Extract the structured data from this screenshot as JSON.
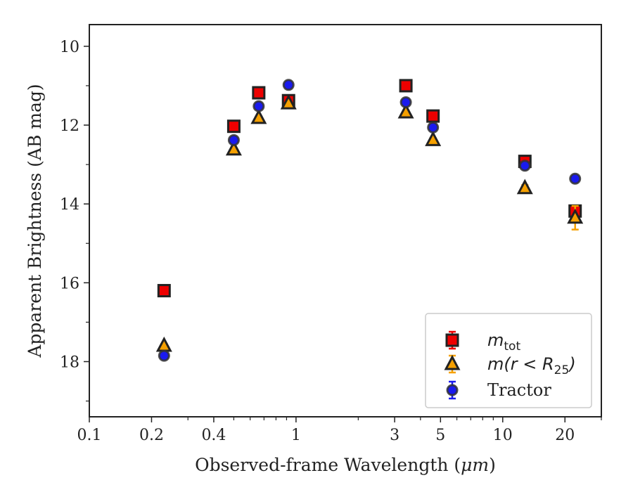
{
  "chart_data": {
    "type": "scatter",
    "xlabel_prefix": "Observed-frame Wavelength (",
    "xlabel_unit": "μm",
    "xlabel_suffix": ")",
    "ylabel": "Apparent Brightness (AB mag)",
    "xscale": "log",
    "xlim": [
      0.1,
      30
    ],
    "ylim": [
      19.4,
      9.45
    ],
    "y_inverted": true,
    "x_major_ticks": [
      0.1,
      0.2,
      0.4,
      1,
      3,
      5,
      10,
      20
    ],
    "x_tick_labels": [
      "0.1",
      "0.2",
      "0.4",
      "1",
      "3",
      "5",
      "10",
      "20"
    ],
    "x_minor_ticks": [
      0.3,
      0.5,
      0.6,
      0.7,
      0.8,
      0.9,
      2,
      4,
      6,
      7,
      8,
      9,
      30
    ],
    "y_major_ticks": [
      10,
      12,
      14,
      16,
      18
    ],
    "y_tick_labels": [
      "10",
      "12",
      "14",
      "16",
      "18"
    ],
    "y_minor_ticks": [
      11,
      13,
      15,
      17,
      19
    ],
    "grid": false,
    "legend_position": "lower-right",
    "series": [
      {
        "legend_main": "m",
        "legend_sub": "tot",
        "legend_rest": "",
        "marker": "square",
        "fill_color": "#ee0000",
        "edge_color": "#222222",
        "error_color": "#ee0000",
        "x": [
          0.23,
          0.5,
          0.66,
          0.92,
          3.4,
          4.6,
          12.8,
          22.4
        ],
        "y": [
          16.2,
          12.03,
          11.18,
          11.38,
          11.0,
          11.77,
          12.92,
          14.18
        ],
        "yerr": [
          0.05,
          0.05,
          0.05,
          0.05,
          0.05,
          0.05,
          0.1,
          0.12
        ]
      },
      {
        "legend_main": "m",
        "legend_sub": "25",
        "legend_rest": "(r < R",
        "legend_close": ")",
        "marker": "triangle",
        "fill_color": "#f5a000",
        "edge_color": "#222222",
        "error_color": "#f5a000",
        "x": [
          0.23,
          0.5,
          0.66,
          0.92,
          3.4,
          4.6,
          12.8,
          22.4
        ],
        "y": [
          17.6,
          12.62,
          11.82,
          11.45,
          11.68,
          12.38,
          13.6,
          14.35
        ],
        "yerr": [
          0.05,
          0.05,
          0.05,
          0.05,
          0.05,
          0.05,
          0.08,
          0.3
        ]
      },
      {
        "legend_main": "Tractor",
        "marker": "circle",
        "fill_color": "#1a1aee",
        "edge_color": "#333333",
        "error_color": "#1a1aee",
        "x": [
          0.23,
          0.5,
          0.66,
          0.92,
          3.4,
          4.6,
          12.8,
          22.4
        ],
        "y": [
          17.85,
          12.38,
          11.52,
          10.98,
          11.42,
          12.06,
          13.03,
          13.36
        ],
        "yerr": [
          0.05,
          0.05,
          0.05,
          0.05,
          0.05,
          0.05,
          0.05,
          0.06
        ]
      }
    ]
  }
}
